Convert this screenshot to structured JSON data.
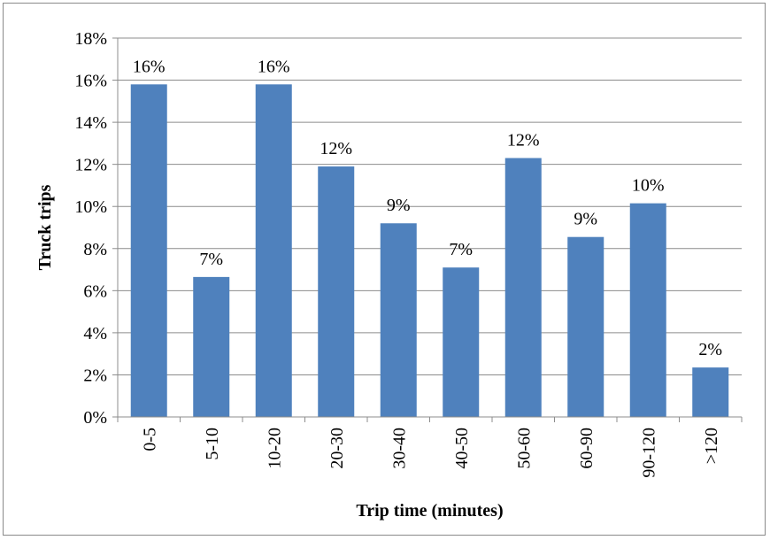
{
  "chart_data": {
    "type": "bar",
    "categories": [
      "0-5",
      "5-10",
      "10-20",
      "20-30",
      "30-40",
      "40-50",
      "50-60",
      "60-90",
      "90-120",
      ">120"
    ],
    "values": [
      15.8,
      6.65,
      15.8,
      11.9,
      9.2,
      7.1,
      12.3,
      8.55,
      10.15,
      2.35
    ],
    "data_labels": [
      "16%",
      "7%",
      "16%",
      "12%",
      "9%",
      "7%",
      "12%",
      "9%",
      "10%",
      "2%"
    ],
    "title": "",
    "xlabel": "Trip time (minutes)",
    "ylabel": "Truck trips",
    "ylim": [
      0,
      18
    ],
    "y_ticks": [
      "0%",
      "2%",
      "4%",
      "6%",
      "8%",
      "10%",
      "12%",
      "14%",
      "16%",
      "18%"
    ],
    "grid": true,
    "bar_color": "#4F81BD",
    "legend": "none"
  }
}
